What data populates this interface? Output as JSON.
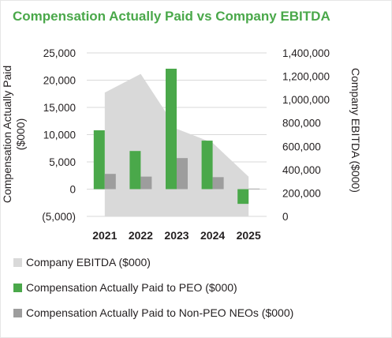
{
  "chart_data": {
    "type": "bar",
    "title": "Compensation Actually Paid vs Company EBITDA",
    "categories": [
      "2021",
      "2022",
      "2023",
      "2024",
      "2025"
    ],
    "y_left": {
      "label_lines": [
        "Compensation Actually Paid",
        "($000)"
      ],
      "range": [
        -5000,
        25000
      ],
      "ticks": [
        25000,
        20000,
        15000,
        10000,
        5000,
        0,
        -5000
      ],
      "tick_labels": [
        "25,000",
        "20,000",
        "15,000",
        "10,000",
        "5,000",
        "0",
        "(5,000)"
      ]
    },
    "y_right": {
      "label": "Company EBITDA ($000)",
      "range": [
        0,
        1400000
      ],
      "ticks": [
        1400000,
        1200000,
        1000000,
        800000,
        600000,
        400000,
        200000,
        0
      ],
      "tick_labels": [
        "1,400,000",
        "1,200,000",
        "1,000,000",
        "800,000",
        "600,000",
        "400,000",
        "200,000",
        "0"
      ]
    },
    "series": [
      {
        "name": "Company EBITDA ($000)",
        "type": "area",
        "axis": "right",
        "color": "#d9d9d9",
        "values": [
          1060000,
          1220000,
          750000,
          630000,
          340000
        ]
      },
      {
        "name": "Compensation Actually Paid to PEO ($000)",
        "type": "bar",
        "axis": "left",
        "color": "#4aa84a",
        "values": [
          10800,
          7000,
          22100,
          8900,
          -2700
        ]
      },
      {
        "name": "Compensation Actually Paid to Non-PEO NEOs ($000)",
        "type": "bar",
        "axis": "left",
        "color": "#9d9d9d",
        "values": [
          2800,
          2300,
          5700,
          2200,
          100
        ]
      }
    ],
    "grid": true,
    "legend_position": "bottom"
  }
}
